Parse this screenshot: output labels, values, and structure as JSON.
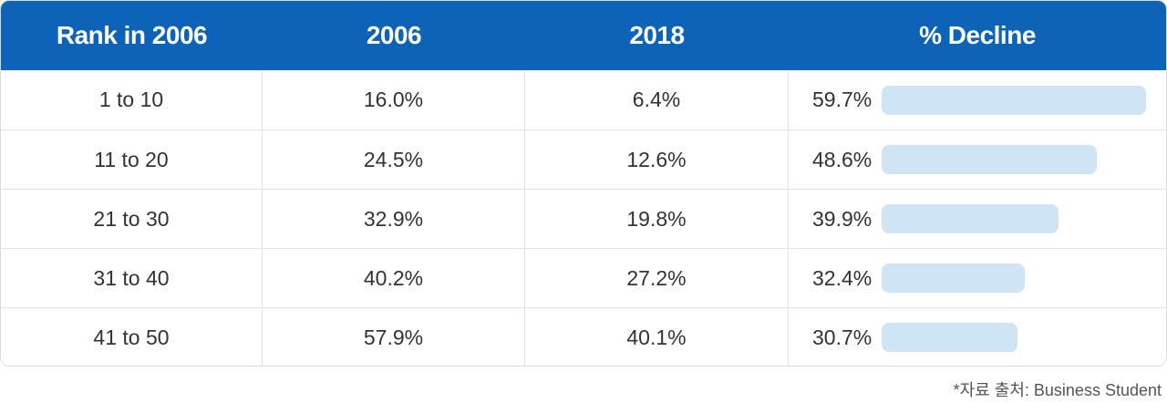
{
  "table": {
    "headers": [
      "Rank in 2006",
      "2006",
      "2018",
      "% Decline"
    ],
    "rows": [
      {
        "rank": "1 to 10",
        "y2006": "16.0%",
        "y2018": "6.4%",
        "decline": "59.7%"
      },
      {
        "rank": "11 to 20",
        "y2006": "24.5%",
        "y2018": "12.6%",
        "decline": "48.6%"
      },
      {
        "rank": "21 to 30",
        "y2006": "32.9%",
        "y2018": "19.8%",
        "decline": "39.9%"
      },
      {
        "rank": "31 to 40",
        "y2006": "40.2%",
        "y2018": "27.2%",
        "decline": "32.4%"
      },
      {
        "rank": "41 to 50",
        "y2006": "57.9%",
        "y2018": "40.1%",
        "decline": "30.7%"
      }
    ]
  },
  "source": "*자료 출처: Business Student",
  "colors": {
    "header_bg": "#0c63b8",
    "bar": "#cfe4f5"
  },
  "chart_data": {
    "type": "table",
    "columns": [
      "Rank in 2006",
      "2006",
      "2018",
      "% Decline"
    ],
    "categories": [
      "1 to 10",
      "11 to 20",
      "21 to 30",
      "31 to 40",
      "41 to 50"
    ],
    "series": [
      {
        "name": "2006",
        "values": [
          16.0,
          24.5,
          32.9,
          40.2,
          57.9
        ]
      },
      {
        "name": "2018",
        "values": [
          6.4,
          12.6,
          19.8,
          27.2,
          40.1
        ]
      },
      {
        "name": "% Decline",
        "values": [
          59.7,
          48.6,
          39.9,
          32.4,
          30.7
        ]
      }
    ]
  }
}
